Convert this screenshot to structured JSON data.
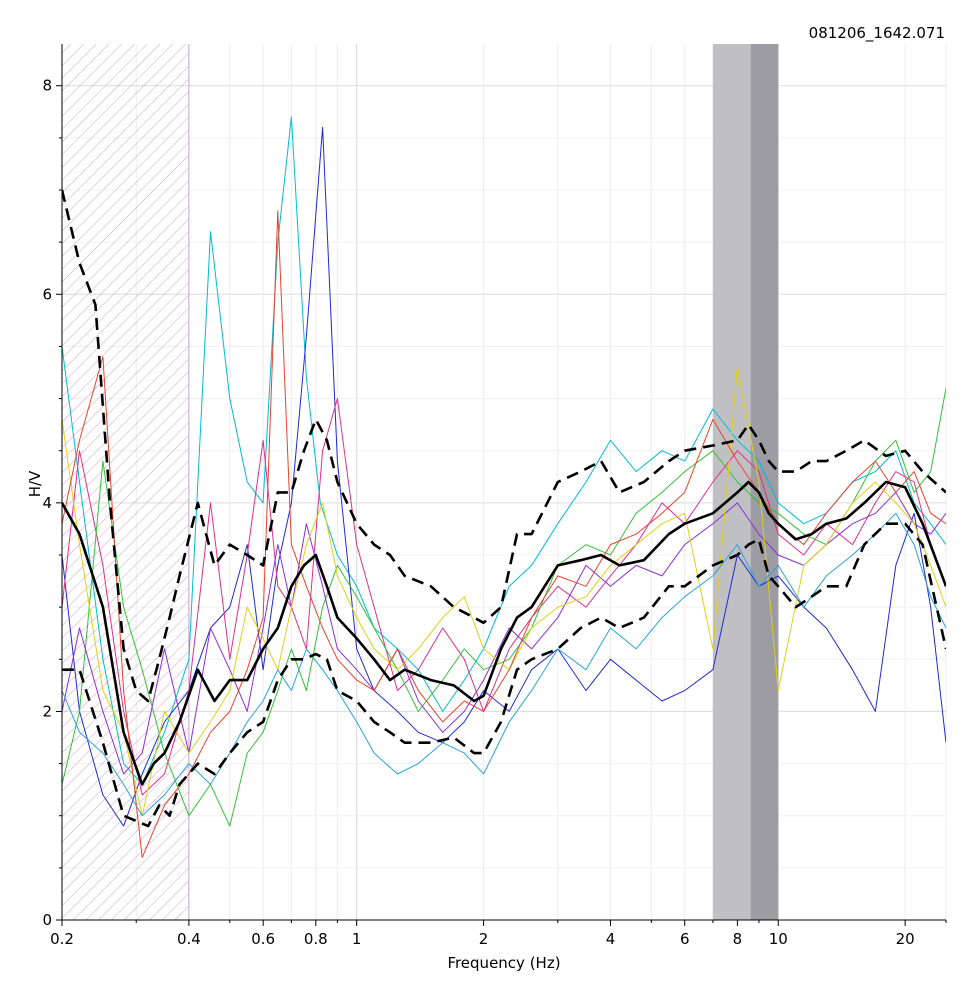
{
  "chart_data": {
    "type": "line",
    "title": "081206_1642.071",
    "xlabel": "Frequency (Hz)",
    "ylabel": "H/V",
    "xscale": "log",
    "xlim": [
      0.2,
      25
    ],
    "ylim": [
      0,
      8.4
    ],
    "grid": true,
    "x_ticks": [
      0.2,
      0.4,
      0.6,
      0.8,
      1,
      2,
      4,
      6,
      8,
      10,
      20
    ],
    "x_tick_labels": [
      "0.2",
      "0.4",
      "0.6",
      "0.8",
      "1",
      "2",
      "4",
      "6",
      "8",
      "10",
      "20"
    ],
    "y_ticks": [
      0,
      2,
      4,
      6,
      8
    ],
    "y_tick_labels": [
      "0",
      "2",
      "4",
      "6",
      "8"
    ],
    "excluded_band": {
      "from": 0.2,
      "to": 0.4,
      "pattern": "hatched"
    },
    "peak_bands": [
      {
        "from": 7.0,
        "to": 8.6,
        "color": "#c0c0c4"
      },
      {
        "from": 8.6,
        "to": 10.0,
        "color": "#9c9ca2"
      }
    ],
    "series": [
      {
        "role": "mean",
        "style": "solid",
        "color": "#000000",
        "x": [
          0.2,
          0.22,
          0.25,
          0.28,
          0.31,
          0.33,
          0.35,
          0.38,
          0.42,
          0.46,
          0.5,
          0.55,
          0.6,
          0.65,
          0.7,
          0.75,
          0.8,
          0.85,
          0.9,
          1.0,
          1.1,
          1.2,
          1.3,
          1.5,
          1.7,
          1.9,
          2.0,
          2.2,
          2.4,
          2.6,
          3.0,
          3.4,
          3.8,
          4.2,
          4.8,
          5.5,
          6.0,
          7.0,
          8.0,
          8.5,
          9.0,
          9.5,
          10.0,
          11.0,
          12.0,
          13.0,
          14.5,
          16.0,
          18.0,
          20.0,
          22.0,
          25.0
        ],
        "y": [
          4.0,
          3.7,
          3.0,
          1.8,
          1.3,
          1.5,
          1.6,
          1.9,
          2.4,
          2.1,
          2.3,
          2.3,
          2.6,
          2.8,
          3.2,
          3.4,
          3.5,
          3.2,
          2.9,
          2.7,
          2.5,
          2.3,
          2.4,
          2.3,
          2.25,
          2.1,
          2.15,
          2.6,
          2.9,
          3.0,
          3.4,
          3.45,
          3.5,
          3.4,
          3.45,
          3.7,
          3.8,
          3.9,
          4.1,
          4.2,
          4.1,
          3.9,
          3.8,
          3.65,
          3.7,
          3.8,
          3.85,
          4.0,
          4.2,
          4.15,
          3.8,
          3.2
        ]
      },
      {
        "role": "mean+std",
        "style": "dashed",
        "color": "#000000",
        "x": [
          0.2,
          0.22,
          0.24,
          0.26,
          0.28,
          0.3,
          0.32,
          0.34,
          0.36,
          0.38,
          0.42,
          0.46,
          0.5,
          0.55,
          0.6,
          0.65,
          0.7,
          0.75,
          0.8,
          0.85,
          0.9,
          1.0,
          1.1,
          1.2,
          1.3,
          1.5,
          1.7,
          1.9,
          2.0,
          2.2,
          2.4,
          2.6,
          3.0,
          3.4,
          3.8,
          4.2,
          4.8,
          5.5,
          6.0,
          7.0,
          8.0,
          8.5,
          9.0,
          9.5,
          10.0,
          11.0,
          12.0,
          13.0,
          14.5,
          16.0,
          18.0,
          20.0,
          22.0,
          25.0
        ],
        "y": [
          7.0,
          6.3,
          5.9,
          4.0,
          2.6,
          2.2,
          2.1,
          2.5,
          2.9,
          3.3,
          4.0,
          3.4,
          3.6,
          3.5,
          3.4,
          4.1,
          4.1,
          4.5,
          4.8,
          4.6,
          4.2,
          3.8,
          3.6,
          3.5,
          3.3,
          3.2,
          3.0,
          2.9,
          2.85,
          3.0,
          3.7,
          3.7,
          4.2,
          4.3,
          4.4,
          4.1,
          4.2,
          4.4,
          4.5,
          4.55,
          4.6,
          4.75,
          4.6,
          4.4,
          4.3,
          4.3,
          4.4,
          4.4,
          4.5,
          4.6,
          4.45,
          4.5,
          4.3,
          4.1
        ]
      },
      {
        "role": "mean-std",
        "style": "dashed",
        "color": "#000000",
        "x": [
          0.2,
          0.22,
          0.25,
          0.28,
          0.3,
          0.32,
          0.34,
          0.36,
          0.38,
          0.42,
          0.46,
          0.5,
          0.55,
          0.6,
          0.65,
          0.7,
          0.75,
          0.8,
          0.85,
          0.9,
          1.0,
          1.1,
          1.2,
          1.3,
          1.5,
          1.7,
          1.9,
          2.0,
          2.2,
          2.4,
          2.6,
          3.0,
          3.4,
          3.8,
          4.2,
          4.8,
          5.5,
          6.0,
          7.0,
          8.0,
          8.5,
          9.0,
          9.5,
          10.0,
          11.0,
          12.0,
          13.0,
          14.5,
          16.0,
          18.0,
          20.0,
          22.0,
          25.0
        ],
        "y": [
          2.4,
          2.4,
          1.7,
          1.0,
          0.95,
          0.9,
          1.1,
          1.0,
          1.3,
          1.5,
          1.4,
          1.6,
          1.8,
          1.9,
          2.3,
          2.5,
          2.5,
          2.55,
          2.5,
          2.2,
          2.1,
          1.9,
          1.8,
          1.7,
          1.7,
          1.75,
          1.6,
          1.6,
          1.9,
          2.4,
          2.5,
          2.6,
          2.8,
          2.9,
          2.8,
          2.9,
          3.2,
          3.2,
          3.4,
          3.5,
          3.6,
          3.65,
          3.3,
          3.2,
          3.0,
          3.1,
          3.2,
          3.2,
          3.6,
          3.8,
          3.8,
          3.6,
          2.6
        ]
      },
      {
        "role": "window",
        "color": "#00bcd4",
        "x": [
          0.2,
          0.22,
          0.25,
          0.28,
          0.31,
          0.35,
          0.4,
          0.45,
          0.5,
          0.55,
          0.6,
          0.65,
          0.7,
          0.76,
          0.82,
          0.9,
          1.0,
          1.1,
          1.25,
          1.4,
          1.6,
          1.8,
          2.0,
          2.3,
          2.6,
          3.0,
          3.5,
          4.0,
          4.6,
          5.3,
          6.0,
          7.0,
          8.0,
          9.0,
          10.0,
          11.5,
          13.0,
          15.0,
          17.0,
          19.0,
          21.0,
          23.0,
          25.0
        ],
        "y": [
          5.5,
          4.2,
          2.5,
          1.5,
          1.3,
          1.8,
          2.5,
          6.6,
          5.0,
          4.2,
          4.0,
          6.5,
          7.7,
          5.2,
          4.0,
          3.5,
          3.2,
          2.8,
          2.6,
          2.4,
          2.0,
          2.3,
          2.6,
          3.2,
          3.4,
          3.8,
          4.2,
          4.6,
          4.3,
          4.5,
          4.4,
          4.9,
          4.6,
          4.4,
          4.0,
          3.8,
          3.9,
          4.2,
          4.3,
          4.5,
          4.0,
          3.8,
          3.6
        ]
      },
      {
        "role": "window",
        "color": "#1e2bd0",
        "x": [
          0.2,
          0.22,
          0.25,
          0.28,
          0.31,
          0.35,
          0.4,
          0.45,
          0.5,
          0.55,
          0.6,
          0.65,
          0.7,
          0.76,
          0.83,
          0.9,
          1.0,
          1.1,
          1.25,
          1.4,
          1.6,
          1.8,
          2.0,
          2.3,
          2.6,
          3.0,
          3.5,
          4.0,
          4.6,
          5.3,
          6.0,
          7.0,
          8.0,
          9.0,
          10.0,
          11.5,
          13.0,
          15.0,
          17.0,
          19.0,
          21.0,
          23.0,
          25.0
        ],
        "y": [
          3.5,
          2.0,
          1.2,
          0.9,
          1.4,
          1.9,
          2.2,
          2.8,
          3.0,
          3.6,
          2.4,
          3.4,
          4.0,
          5.6,
          7.6,
          4.4,
          2.6,
          2.2,
          2.0,
          1.8,
          1.7,
          1.9,
          2.2,
          2.0,
          2.4,
          2.6,
          2.2,
          2.5,
          2.3,
          2.1,
          2.2,
          2.4,
          3.5,
          3.2,
          3.3,
          3.0,
          2.8,
          2.4,
          2.0,
          3.4,
          3.9,
          3.0,
          1.7
        ]
      },
      {
        "role": "window",
        "color": "#e02f8a",
        "x": [
          0.2,
          0.22,
          0.25,
          0.28,
          0.31,
          0.35,
          0.4,
          0.45,
          0.5,
          0.55,
          0.6,
          0.65,
          0.7,
          0.76,
          0.83,
          0.9,
          1.0,
          1.1,
          1.25,
          1.4,
          1.6,
          1.8,
          2.0,
          2.3,
          2.6,
          3.0,
          3.5,
          4.0,
          4.6,
          5.3,
          6.0,
          7.0,
          8.0,
          9.0,
          10.0,
          11.5,
          13.0,
          15.0,
          17.0,
          19.0,
          21.0,
          23.0,
          25.0
        ],
        "y": [
          3.0,
          4.5,
          3.4,
          2.0,
          1.2,
          1.4,
          2.2,
          4.0,
          2.5,
          3.5,
          4.6,
          3.2,
          3.0,
          2.6,
          4.5,
          5.0,
          3.6,
          3.0,
          2.2,
          2.4,
          2.8,
          2.5,
          2.0,
          2.6,
          2.9,
          3.2,
          3.0,
          3.3,
          3.6,
          4.0,
          3.8,
          4.2,
          4.5,
          4.3,
          3.7,
          3.5,
          3.8,
          3.6,
          4.0,
          4.3,
          4.2,
          3.6,
          3.2
        ]
      },
      {
        "role": "window",
        "color": "#34c23a",
        "x": [
          0.2,
          0.22,
          0.25,
          0.28,
          0.31,
          0.35,
          0.4,
          0.45,
          0.5,
          0.55,
          0.6,
          0.65,
          0.7,
          0.76,
          0.83,
          0.9,
          1.0,
          1.1,
          1.25,
          1.4,
          1.6,
          1.8,
          2.0,
          2.3,
          2.6,
          3.0,
          3.5,
          4.0,
          4.6,
          5.3,
          6.0,
          7.0,
          8.0,
          9.0,
          10.0,
          11.5,
          13.0,
          15.0,
          17.0,
          19.0,
          21.0,
          23.0,
          25.0
        ],
        "y": [
          1.3,
          2.0,
          4.4,
          3.0,
          2.4,
          1.6,
          1.0,
          1.3,
          0.9,
          1.6,
          1.8,
          2.2,
          2.6,
          2.2,
          3.0,
          3.4,
          3.1,
          2.8,
          2.4,
          2.0,
          2.3,
          2.6,
          2.4,
          2.5,
          2.8,
          3.4,
          3.6,
          3.5,
          3.9,
          4.1,
          4.3,
          4.5,
          4.2,
          4.0,
          3.9,
          3.7,
          3.6,
          4.0,
          4.4,
          4.6,
          4.1,
          4.3,
          5.1
        ]
      },
      {
        "role": "window",
        "color": "#8b2fd6",
        "x": [
          0.2,
          0.22,
          0.25,
          0.28,
          0.31,
          0.35,
          0.4,
          0.45,
          0.5,
          0.55,
          0.6,
          0.65,
          0.7,
          0.76,
          0.83,
          0.9,
          1.0,
          1.1,
          1.25,
          1.4,
          1.6,
          1.8,
          2.0,
          2.3,
          2.6,
          3.0,
          3.5,
          4.0,
          4.6,
          5.3,
          6.0,
          7.0,
          8.0,
          9.0,
          10.0,
          11.5,
          13.0,
          15.0,
          17.0,
          19.0,
          21.0,
          23.0,
          25.0
        ],
        "y": [
          2.0,
          2.8,
          2.0,
          1.4,
          1.6,
          2.6,
          1.6,
          2.8,
          2.4,
          2.0,
          2.8,
          3.6,
          3.0,
          3.8,
          3.2,
          2.6,
          2.4,
          2.2,
          2.6,
          2.1,
          1.8,
          2.0,
          2.3,
          2.8,
          2.6,
          2.9,
          3.4,
          3.2,
          3.4,
          3.3,
          3.6,
          3.8,
          4.0,
          3.7,
          3.5,
          3.4,
          3.6,
          3.8,
          3.9,
          4.1,
          3.8,
          3.7,
          3.9
        ]
      },
      {
        "role": "window",
        "color": "#e0d016",
        "x": [
          0.2,
          0.22,
          0.25,
          0.28,
          0.31,
          0.35,
          0.4,
          0.45,
          0.5,
          0.55,
          0.6,
          0.65,
          0.7,
          0.76,
          0.83,
          0.9,
          1.0,
          1.1,
          1.25,
          1.4,
          1.6,
          1.8,
          2.0,
          2.3,
          2.6,
          3.0,
          3.5,
          4.0,
          4.6,
          5.3,
          6.0,
          7.0,
          8.0,
          9.0,
          10.0,
          11.5,
          13.0,
          15.0,
          17.0,
          19.0,
          21.0,
          23.0,
          25.0
        ],
        "y": [
          4.8,
          3.6,
          2.2,
          1.8,
          1.0,
          2.0,
          1.6,
          1.9,
          2.2,
          3.0,
          2.7,
          2.4,
          3.0,
          3.6,
          4.0,
          3.3,
          2.9,
          2.6,
          2.4,
          2.6,
          2.9,
          3.1,
          2.6,
          2.4,
          2.8,
          3.0,
          3.1,
          3.4,
          3.6,
          3.8,
          3.9,
          2.6,
          5.3,
          4.2,
          2.2,
          3.4,
          3.6,
          4.0,
          4.2,
          4.0,
          3.8,
          3.4,
          3.0
        ]
      },
      {
        "role": "window",
        "color": "#e8432c",
        "x": [
          0.2,
          0.22,
          0.25,
          0.28,
          0.31,
          0.35,
          0.4,
          0.45,
          0.5,
          0.55,
          0.6,
          0.65,
          0.7,
          0.76,
          0.83,
          0.9,
          1.0,
          1.1,
          1.25,
          1.4,
          1.6,
          1.8,
          2.0,
          2.3,
          2.6,
          3.0,
          3.5,
          4.0,
          4.6,
          5.3,
          6.0,
          7.0,
          8.0,
          9.0,
          10.0,
          11.5,
          13.0,
          15.0,
          17.0,
          19.0,
          21.0,
          23.0,
          25.0
        ],
        "y": [
          3.8,
          4.6,
          5.4,
          2.2,
          0.6,
          1.1,
          1.4,
          1.8,
          2.0,
          2.4,
          2.9,
          6.8,
          3.6,
          3.2,
          2.8,
          2.5,
          2.3,
          2.2,
          2.6,
          2.2,
          1.9,
          2.1,
          2.0,
          2.4,
          2.9,
          3.3,
          3.2,
          3.6,
          3.7,
          3.9,
          4.1,
          4.8,
          4.4,
          4.1,
          3.8,
          3.6,
          3.9,
          4.2,
          4.4,
          4.1,
          4.3,
          3.9,
          3.8
        ]
      },
      {
        "role": "window",
        "color": "#2aa4d8",
        "x": [
          0.2,
          0.22,
          0.25,
          0.28,
          0.31,
          0.35,
          0.4,
          0.45,
          0.5,
          0.55,
          0.6,
          0.65,
          0.7,
          0.76,
          0.83,
          0.9,
          1.0,
          1.1,
          1.25,
          1.4,
          1.6,
          1.8,
          2.0,
          2.3,
          2.6,
          3.0,
          3.5,
          4.0,
          4.6,
          5.3,
          6.0,
          7.0,
          8.0,
          9.0,
          10.0,
          11.5,
          13.0,
          15.0,
          17.0,
          19.0,
          21.0,
          23.0,
          25.0
        ],
        "y": [
          2.2,
          1.8,
          1.6,
          1.3,
          1.0,
          1.2,
          1.5,
          1.3,
          1.6,
          1.9,
          2.1,
          2.4,
          2.2,
          2.6,
          2.4,
          2.2,
          1.9,
          1.6,
          1.4,
          1.5,
          1.7,
          1.6,
          1.4,
          1.9,
          2.2,
          2.6,
          2.4,
          2.8,
          2.6,
          2.9,
          3.1,
          3.3,
          3.6,
          3.2,
          3.4,
          3.0,
          3.3,
          3.5,
          3.7,
          3.9,
          3.6,
          3.1,
          2.8
        ]
      }
    ]
  }
}
